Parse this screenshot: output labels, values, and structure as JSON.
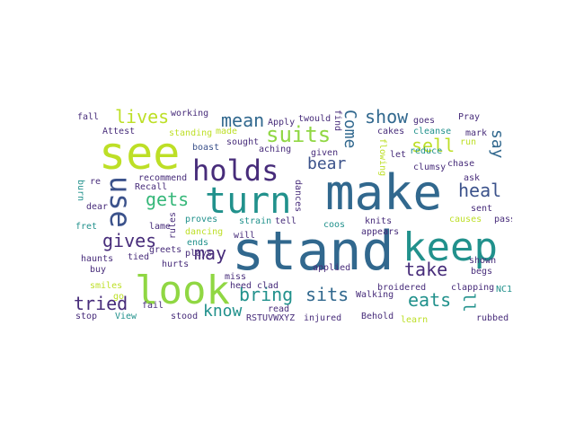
{
  "palette": {
    "dark_purple": "#472c7a",
    "indigo": "#3b528b",
    "blue": "#31688e",
    "teal": "#21918c",
    "green": "#35b779",
    "lime": "#90d743",
    "yellow": "#bddf26"
  },
  "words": [
    {
      "text": "stand",
      "color": "#31688e"
    },
    {
      "text": "make",
      "color": "#31688e"
    },
    {
      "text": "see",
      "color": "#bddf26"
    },
    {
      "text": "look",
      "color": "#90d743"
    },
    {
      "text": "keep",
      "color": "#21918c"
    },
    {
      "text": "turn",
      "color": "#21918c"
    },
    {
      "text": "holds",
      "color": "#472c7a"
    },
    {
      "text": "use",
      "color": "#3b528b"
    },
    {
      "text": "suits",
      "color": "#90d743"
    },
    {
      "text": "heal",
      "color": "#3b528b"
    },
    {
      "text": "bring",
      "color": "#21918c"
    },
    {
      "text": "sits",
      "color": "#31688e"
    },
    {
      "text": "tried",
      "color": "#472c7a"
    },
    {
      "text": "gives",
      "color": "#472c7a"
    },
    {
      "text": "may",
      "color": "#472c7a"
    },
    {
      "text": "take",
      "color": "#472c7a"
    },
    {
      "text": "eats",
      "color": "#21918c"
    },
    {
      "text": "mean",
      "color": "#31688e"
    },
    {
      "text": "lives",
      "color": "#bddf26"
    },
    {
      "text": "gets",
      "color": "#35b779"
    },
    {
      "text": "bear",
      "color": "#3b528b"
    },
    {
      "text": "show",
      "color": "#31688e"
    },
    {
      "text": "sell",
      "color": "#bddf26"
    },
    {
      "text": "know",
      "color": "#21918c"
    },
    {
      "text": "say",
      "color": "#31688e"
    },
    {
      "text": "Come",
      "color": "#31688e"
    },
    {
      "text": "ll",
      "color": "#21918c"
    },
    {
      "text": "fall",
      "color": "#472c7a"
    },
    {
      "text": "working",
      "color": "#472c7a"
    },
    {
      "text": "Attest",
      "color": "#472c7a"
    },
    {
      "text": "standing",
      "color": "#bddf26"
    },
    {
      "text": "made",
      "color": "#bddf26"
    },
    {
      "text": "Apply",
      "color": "#472c7a"
    },
    {
      "text": "twould",
      "color": "#472c7a"
    },
    {
      "text": "find",
      "color": "#472c7a"
    },
    {
      "text": "goes",
      "color": "#472c7a"
    },
    {
      "text": "Pray",
      "color": "#472c7a"
    },
    {
      "text": "cleanse",
      "color": "#21918c"
    },
    {
      "text": "mark",
      "color": "#472c7a"
    },
    {
      "text": "run",
      "color": "#bddf26"
    },
    {
      "text": "aching",
      "color": "#472c7a"
    },
    {
      "text": "boast",
      "color": "#3b528b"
    },
    {
      "text": "sought",
      "color": "#472c7a"
    },
    {
      "text": "cakes",
      "color": "#472c7a"
    },
    {
      "text": "reduce",
      "color": "#21918c"
    },
    {
      "text": "let",
      "color": "#472c7a"
    },
    {
      "text": "clumsy",
      "color": "#472c7a"
    },
    {
      "text": "chase",
      "color": "#472c7a"
    },
    {
      "text": "ask",
      "color": "#472c7a"
    },
    {
      "text": "sent",
      "color": "#472c7a"
    },
    {
      "text": "causes",
      "color": "#bddf26"
    },
    {
      "text": "pass",
      "color": "#472c7a"
    },
    {
      "text": "burn",
      "color": "#21918c"
    },
    {
      "text": "re",
      "color": "#472c7a"
    },
    {
      "text": "recommend",
      "color": "#472c7a"
    },
    {
      "text": "Recall",
      "color": "#472c7a"
    },
    {
      "text": "dear",
      "color": "#472c7a"
    },
    {
      "text": "fret",
      "color": "#21918c"
    },
    {
      "text": "lame",
      "color": "#472c7a"
    },
    {
      "text": "rules",
      "color": "#472c7a"
    },
    {
      "text": "greets",
      "color": "#472c7a"
    },
    {
      "text": "proves",
      "color": "#21918c"
    },
    {
      "text": "strain",
      "color": "#21918c"
    },
    {
      "text": "tell",
      "color": "#472c7a"
    },
    {
      "text": "coos",
      "color": "#21918c"
    },
    {
      "text": "knits",
      "color": "#472c7a"
    },
    {
      "text": "given",
      "color": "#472c7a"
    },
    {
      "text": "dances",
      "color": "#472c7a"
    },
    {
      "text": "flowing",
      "color": "#bddf26"
    },
    {
      "text": "haunts",
      "color": "#472c7a"
    },
    {
      "text": "buy",
      "color": "#472c7a"
    },
    {
      "text": "tied",
      "color": "#472c7a"
    },
    {
      "text": "dancing",
      "color": "#bddf26"
    },
    {
      "text": "ends",
      "color": "#21918c"
    },
    {
      "text": "will",
      "color": "#472c7a"
    },
    {
      "text": "appears",
      "color": "#472c7a"
    },
    {
      "text": "hurts",
      "color": "#472c7a"
    },
    {
      "text": "plays",
      "color": "#472c7a"
    },
    {
      "text": "applied",
      "color": "#472c7a"
    },
    {
      "text": "shown",
      "color": "#472c7a"
    },
    {
      "text": "begs",
      "color": "#472c7a"
    },
    {
      "text": "smiles",
      "color": "#bddf26"
    },
    {
      "text": "go",
      "color": "#bddf26"
    },
    {
      "text": "miss",
      "color": "#472c7a"
    },
    {
      "text": "heed",
      "color": "#472c7a"
    },
    {
      "text": "clad",
      "color": "#472c7a"
    },
    {
      "text": "broidered",
      "color": "#472c7a"
    },
    {
      "text": "clapping",
      "color": "#472c7a"
    },
    {
      "text": "Walking",
      "color": "#472c7a"
    },
    {
      "text": "NC1",
      "color": "#21918c"
    },
    {
      "text": "stop",
      "color": "#472c7a"
    },
    {
      "text": "fail",
      "color": "#472c7a"
    },
    {
      "text": "read",
      "color": "#472c7a"
    },
    {
      "text": "View",
      "color": "#21918c"
    },
    {
      "text": "stood",
      "color": "#472c7a"
    },
    {
      "text": "RSTUVWXYZ",
      "color": "#472c7a"
    },
    {
      "text": "injured",
      "color": "#472c7a"
    },
    {
      "text": "Behold",
      "color": "#472c7a"
    },
    {
      "text": "learn",
      "color": "#bddf26"
    },
    {
      "text": "rubbed",
      "color": "#472c7a"
    }
  ]
}
